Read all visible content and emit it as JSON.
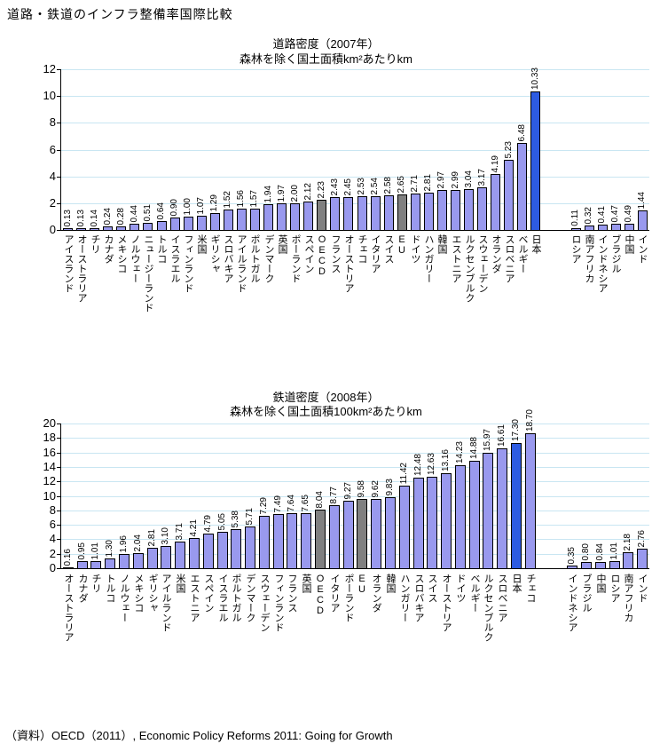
{
  "page": {
    "title": "道路・鉄道のインフラ整備率国際比較",
    "source": "（資料）OECD（2011）, Economic Policy Reforms 2011: Going for Growth"
  },
  "colors": {
    "background": "#FFFFFF",
    "text": "#000000",
    "axis": "#000000",
    "gridline": "#C9E6F2",
    "bar_fill": "#9999EE",
    "bar_border": "#000000",
    "aggregate_fill": "#808080",
    "highlight_fill": "#2D5BE2"
  },
  "chart_data": [
    {
      "type": "bar",
      "title": "道路密度（2007年）",
      "subtitle": "森林を除く国土面積km²あたりkm",
      "xlabel": "",
      "ylabel": "",
      "ylim": [
        0,
        12
      ],
      "yticks": [
        0,
        2,
        4,
        6,
        8,
        10,
        12
      ],
      "grid": true,
      "legend": "none",
      "categories": [
        "アイスランド",
        "オーストラリア",
        "チリ",
        "カナダ",
        "メキシコ",
        "ノルウェー",
        "ニュージーランド",
        "トルコ",
        "イスラエル",
        "フィンランド",
        "米国",
        "ギリシャ",
        "スロバキア",
        "アイルランド",
        "ポルトガル",
        "デンマーク",
        "英国",
        "ポーランド",
        "スペイン",
        "OECD",
        "フランス",
        "オーストリア",
        "チェコ",
        "イタリア",
        "スイス",
        "EU",
        "ドイツ",
        "ハンガリー",
        "韓国",
        "エストニア",
        "ルクセンブルク",
        "スウェーデン",
        "オランダ",
        "スロベニア",
        "ベルギー",
        "日本",
        "ロシア",
        "南アフリカ",
        "インドネシア",
        "ブラジル",
        "中国",
        "インド"
      ],
      "values": [
        0.13,
        0.13,
        0.14,
        0.24,
        0.28,
        0.44,
        0.51,
        0.64,
        0.9,
        1.0,
        1.07,
        1.29,
        1.52,
        1.56,
        1.57,
        1.94,
        1.97,
        2.0,
        2.12,
        2.23,
        2.43,
        2.45,
        2.53,
        2.54,
        2.58,
        2.65,
        2.71,
        2.81,
        2.97,
        2.99,
        3.04,
        3.17,
        4.19,
        5.23,
        6.48,
        10.33,
        0.11,
        0.32,
        0.41,
        0.47,
        0.49,
        1.44
      ],
      "aggregate_indices": [
        19,
        25
      ],
      "highlight_indices": [
        35
      ],
      "gap_after_index": 35,
      "value_decimals": 2
    },
    {
      "type": "bar",
      "title": "鉄道密度（2008年）",
      "subtitle": "森林を除く国土面積100km²あたりkm",
      "xlabel": "",
      "ylabel": "",
      "ylim": [
        0,
        20
      ],
      "yticks": [
        0,
        2,
        4,
        6,
        8,
        10,
        12,
        14,
        16,
        18,
        20
      ],
      "grid": true,
      "legend": "none",
      "categories": [
        "オーストラリア",
        "カナダ",
        "チリ",
        "トルコ",
        "ノルウェー",
        "メキシコ",
        "ギリシャ",
        "アイルランド",
        "米国",
        "エストニア",
        "スペイン",
        "イスラエル",
        "ポルトガル",
        "デンマーク",
        "スウェーデン",
        "フィンランド",
        "フランス",
        "英国",
        "OECD",
        "イタリア",
        "ポーランド",
        "EU",
        "オランダ",
        "韓国",
        "ハンガリー",
        "スロバキア",
        "スイス",
        "オーストリア",
        "ドイツ",
        "ベルギー",
        "ルクセンブルク",
        "スロベニア",
        "日本",
        "チェコ",
        "インドネシア",
        "ブラジル",
        "中国",
        "ロシア",
        "南アフリカ",
        "インド"
      ],
      "values": [
        0.16,
        0.95,
        1.01,
        1.3,
        1.96,
        2.04,
        2.81,
        3.1,
        3.71,
        4.21,
        4.79,
        5.05,
        5.38,
        5.71,
        7.29,
        7.49,
        7.64,
        7.65,
        8.04,
        8.77,
        9.27,
        9.58,
        9.62,
        9.83,
        11.42,
        12.48,
        12.63,
        13.16,
        14.23,
        14.88,
        15.97,
        16.61,
        17.3,
        18.7,
        0.35,
        0.8,
        0.84,
        1.01,
        2.18,
        2.76
      ],
      "aggregate_indices": [
        18,
        21
      ],
      "highlight_indices": [
        32
      ],
      "gap_after_index": 33,
      "value_decimals": 2
    }
  ]
}
